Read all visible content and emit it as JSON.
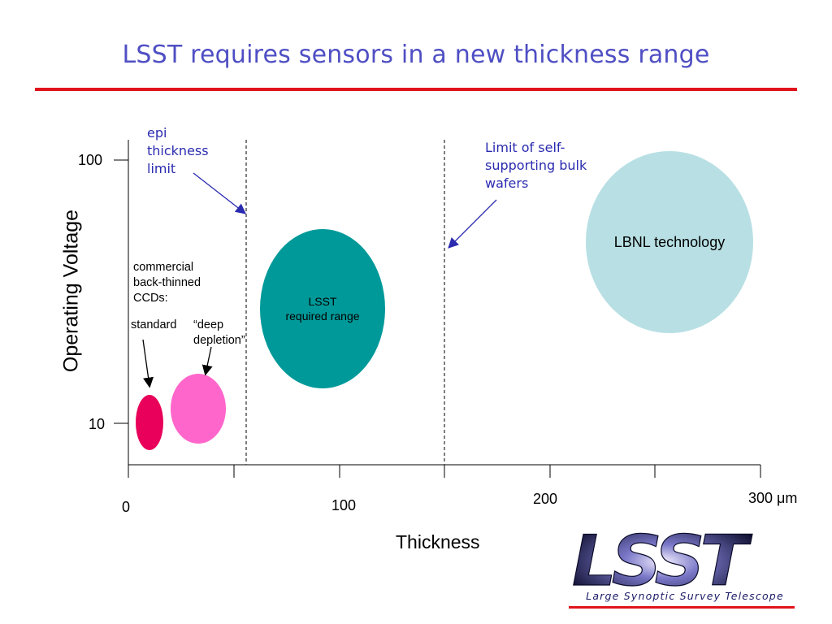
{
  "title": "LSST requires sensors in a new thickness range",
  "axes": {
    "y_title": "Operating Voltage",
    "x_title": "Thickness",
    "y_ticks": [
      "100",
      "10"
    ],
    "x_ticks": [
      "0",
      "100",
      "200",
      "300 μm"
    ]
  },
  "annotations": {
    "epi_limit": "epi\nthickness\nlimit",
    "bulk_limit": "Limit of self-\nsupporting bulk\nwafers",
    "commercial": "commercial\nback-thinned\nCCDs:",
    "standard": "standard",
    "deep_depletion": "“deep\ndepletion”"
  },
  "regions": {
    "lsst": "LSST\nrequired range",
    "lbnl": "LBNL technology"
  },
  "colors": {
    "title": "#4f4fc4",
    "rule": "#e0141c",
    "standard": "#e8005a",
    "deep_depletion": "#ff66cc",
    "lsst": "#009999",
    "lbnl": "#b8e0e4",
    "annotation": "#2b2bb0"
  },
  "logo": {
    "text": "LSST",
    "subtitle": "Large Synoptic Survey Telescope"
  }
}
